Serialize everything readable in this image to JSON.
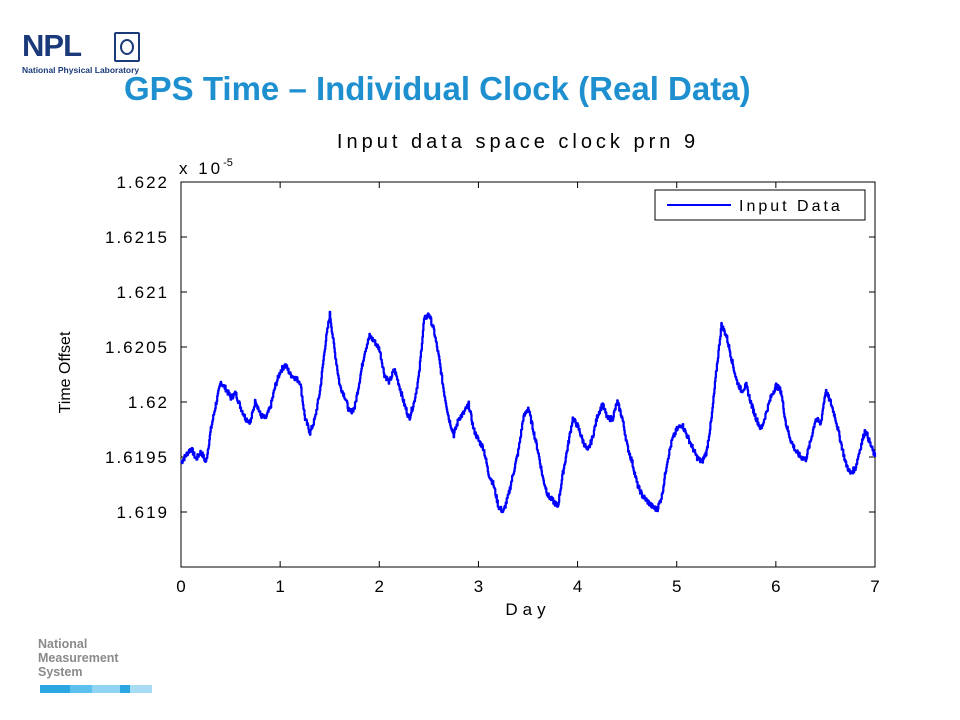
{
  "header": {
    "logo_letters": "NPL",
    "logo_subtitle": "National Physical Laboratory",
    "title": "GPS Time – Individual Clock (Real Data)"
  },
  "footer": {
    "nms_line1": "National",
    "nms_line2": "Measurement",
    "nms_line3": "System",
    "bar_colors": [
      "#2aa6e0",
      "#5cc0ec",
      "#8fd4f3",
      "#2aa6e0",
      "#a8dcf5"
    ]
  },
  "colors": {
    "title": "#1e8fcf",
    "npl_blue": "#1a3a7a",
    "series": "#0000ff"
  },
  "chart_data": {
    "type": "line",
    "title": "Input data space clock prn 9",
    "xlabel": "Day",
    "ylabel": "Time Offset",
    "y_multiplier": "x 10",
    "y_exponent": "-5",
    "xlim": [
      0,
      7
    ],
    "ylim": [
      1.6185,
      1.622
    ],
    "x_ticks": [
      0,
      1,
      2,
      3,
      4,
      5,
      6,
      7
    ],
    "x_tick_labels": [
      "0",
      "1",
      "2",
      "3",
      "4",
      "5",
      "6",
      "7"
    ],
    "y_ticks": [
      1.619,
      1.6195,
      1.62,
      1.6205,
      1.621,
      1.6215,
      1.622
    ],
    "y_tick_labels": [
      "1.619",
      "1.6195",
      "1.62",
      "1.6205",
      "1.621",
      "1.6215",
      "1.622"
    ],
    "grid": false,
    "legend_position": "top-right",
    "series": [
      {
        "name": "Input Data",
        "x": [
          0,
          0.05,
          0.1,
          0.15,
          0.2,
          0.25,
          0.3,
          0.35,
          0.4,
          0.45,
          0.5,
          0.55,
          0.6,
          0.65,
          0.7,
          0.75,
          0.8,
          0.85,
          0.9,
          0.95,
          1.0,
          1.05,
          1.1,
          1.15,
          1.2,
          1.25,
          1.3,
          1.35,
          1.4,
          1.45,
          1.5,
          1.55,
          1.6,
          1.65,
          1.7,
          1.75,
          1.8,
          1.85,
          1.9,
          1.95,
          2.0,
          2.05,
          2.1,
          2.15,
          2.2,
          2.25,
          2.3,
          2.35,
          2.4,
          2.45,
          2.5,
          2.55,
          2.6,
          2.65,
          2.7,
          2.75,
          2.8,
          2.85,
          2.9,
          2.95,
          3.0,
          3.05,
          3.1,
          3.15,
          3.2,
          3.25,
          3.3,
          3.35,
          3.4,
          3.45,
          3.5,
          3.55,
          3.6,
          3.65,
          3.7,
          3.75,
          3.8,
          3.85,
          3.9,
          3.95,
          4.0,
          4.05,
          4.1,
          4.15,
          4.2,
          4.25,
          4.3,
          4.35,
          4.4,
          4.45,
          4.5,
          4.55,
          4.6,
          4.65,
          4.7,
          4.75,
          4.8,
          4.85,
          4.9,
          4.95,
          5.0,
          5.05,
          5.1,
          5.15,
          5.2,
          5.25,
          5.3,
          5.35,
          5.4,
          5.45,
          5.5,
          5.55,
          5.6,
          5.65,
          5.7,
          5.75,
          5.8,
          5.85,
          5.9,
          5.95,
          6.0,
          6.05,
          6.1,
          6.15,
          6.2,
          6.25,
          6.3,
          6.35,
          6.4,
          6.45,
          6.5,
          6.55,
          6.6,
          6.65,
          6.7,
          6.75,
          6.8,
          6.85,
          6.9,
          6.95,
          7.0
        ],
        "y": [
          1.61945,
          1.61952,
          1.61958,
          1.61948,
          1.61955,
          1.61945,
          1.61975,
          1.61998,
          1.62018,
          1.62012,
          1.62004,
          1.62008,
          1.61995,
          1.61985,
          1.61982,
          1.62002,
          1.61988,
          1.61985,
          1.61995,
          1.62015,
          1.62028,
          1.62034,
          1.62025,
          1.62022,
          1.62018,
          1.61985,
          1.61972,
          1.61985,
          1.6201,
          1.6205,
          1.6208,
          1.62045,
          1.62015,
          1.62005,
          1.6199,
          1.61995,
          1.6202,
          1.62045,
          1.6206,
          1.62055,
          1.62048,
          1.62025,
          1.62018,
          1.6203,
          1.62015,
          1.61998,
          1.61985,
          1.62,
          1.62025,
          1.62075,
          1.6208,
          1.62065,
          1.6204,
          1.6201,
          1.61985,
          1.6197,
          1.61985,
          1.6199,
          1.61998,
          1.61975,
          1.61965,
          1.61958,
          1.61935,
          1.61925,
          1.61905,
          1.619,
          1.61915,
          1.61935,
          1.61955,
          1.61985,
          1.61995,
          1.61975,
          1.61955,
          1.6193,
          1.61915,
          1.6191,
          1.61905,
          1.61935,
          1.6196,
          1.61985,
          1.61978,
          1.61965,
          1.61955,
          1.61968,
          1.61988,
          1.61998,
          1.61985,
          1.61985,
          1.62,
          1.61985,
          1.6196,
          1.61945,
          1.61925,
          1.61915,
          1.6191,
          1.61905,
          1.61902,
          1.61915,
          1.61945,
          1.61965,
          1.61975,
          1.6198,
          1.6197,
          1.6196,
          1.6195,
          1.61945,
          1.61955,
          1.61985,
          1.6203,
          1.6207,
          1.6206,
          1.6204,
          1.6202,
          1.6201,
          1.62015,
          1.61998,
          1.61985,
          1.61975,
          1.6199,
          1.62005,
          1.62015,
          1.6201,
          1.6198,
          1.61965,
          1.61955,
          1.6195,
          1.61948,
          1.61965,
          1.61985,
          1.6198,
          1.6201,
          1.62,
          1.61985,
          1.61965,
          1.61945,
          1.61935,
          1.6194,
          1.61958,
          1.61975,
          1.61962,
          1.6195
        ]
      }
    ]
  }
}
